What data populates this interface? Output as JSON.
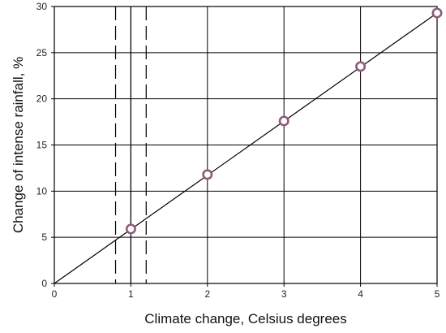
{
  "chart_data": {
    "type": "scatter",
    "title": "",
    "xlabel": "Climate change, Celsius degrees",
    "ylabel": "Change of intense rainfall, %",
    "xlim": [
      0,
      5
    ],
    "ylim": [
      0,
      30
    ],
    "x_ticks": [
      "0",
      "1",
      "2",
      "3",
      "4",
      "5"
    ],
    "y_ticks": [
      "0",
      "5",
      "10",
      "15",
      "20",
      "25",
      "30"
    ],
    "grid": true,
    "series": [
      {
        "x": [
          1,
          2,
          3,
          4,
          5
        ],
        "y": [
          5.9,
          11.8,
          17.6,
          23.5,
          29.3
        ]
      }
    ],
    "trend_line": {
      "x": [
        0,
        5
      ],
      "y": [
        0,
        29.3
      ]
    },
    "reference_lines": {
      "solid_x": [
        1
      ],
      "dashed_x": [
        0.8,
        1.2
      ]
    },
    "colors": {
      "marker_edge": "#8e5a78",
      "marker_fill": "#ffffff",
      "line": "#000000",
      "grid": "#000000"
    }
  }
}
